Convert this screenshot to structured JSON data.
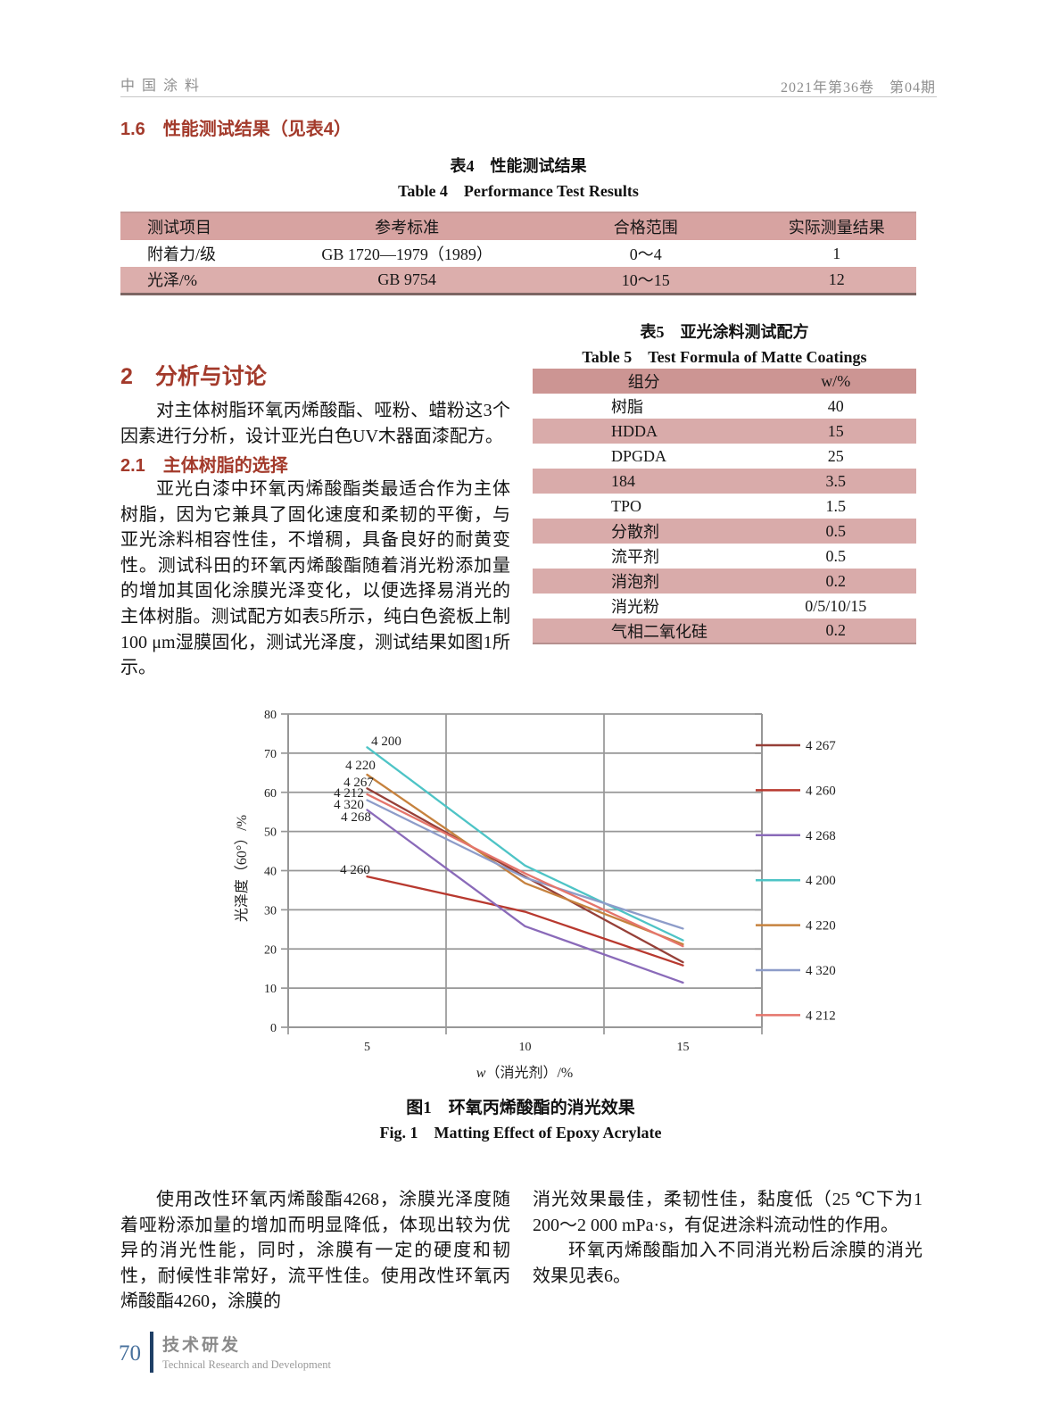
{
  "header": {
    "journal": "中国涂料",
    "issue": "2021年第36卷　第04期"
  },
  "sections": {
    "s16": {
      "title": "1.6　性能测试结果（见表4）"
    },
    "s2": {
      "title": "2　分析与讨论",
      "para": "对主体树脂环氧丙烯酸酯、哑粉、蜡粉这3个因素进行分析，设计亚光白色UV木器面漆配方。"
    },
    "s21": {
      "title": "2.1　主体树脂的选择",
      "para": "亚光白漆中环氧丙烯酸酯类最适合作为主体树脂，因为它兼具了固化速度和柔韧的平衡，与亚光涂料相容性佳，不增稠，具备良好的耐黄变性。测试科田的环氧丙烯酸酯随着消光粉添加量的增加其固化涂膜光泽变化，以便选择易消光的主体树脂。测试配方如表5所示，纯白色瓷板上制100 μm湿膜固化，测试光泽度，测试结果如图1所示。"
    }
  },
  "table4": {
    "title_cn": "表4　性能测试结果",
    "title_en": "Table 4　Performance Test Results",
    "headers": [
      "测试项目",
      "参考标准",
      "合格范围",
      "实际测量结果"
    ],
    "rows": [
      [
        "附着力/级",
        "GB 1720—1979（1989）",
        "0～4",
        "1"
      ],
      [
        "光泽/%",
        "GB 9754",
        "10～15",
        "12"
      ]
    ]
  },
  "table5": {
    "title_cn": "表5　亚光涂料测试配方",
    "title_en": "Table 5　Test Formula of Matte Coatings",
    "headers": [
      "组分",
      "w/%"
    ],
    "rows": [
      [
        "树脂",
        "40"
      ],
      [
        "HDDA",
        "15"
      ],
      [
        "DPGDA",
        "25"
      ],
      [
        "184",
        "3.5"
      ],
      [
        "TPO",
        "1.5"
      ],
      [
        "分散剂",
        "0.5"
      ],
      [
        "流平剂",
        "0.5"
      ],
      [
        "消泡剂",
        "0.2"
      ],
      [
        "消光粉",
        "0/5/10/15"
      ],
      [
        "气相二氧化硅",
        "0.2"
      ]
    ]
  },
  "figure1": {
    "caption_cn": "图1　环氧丙烯酸酯的消光效果",
    "caption_en": "Fig. 1　Matting Effect of Epoxy Acrylate"
  },
  "paragraphs": {
    "bottom_left": "使用改性环氧丙烯酸酯4268，涂膜光泽度随着哑粉添加量的增加而明显降低，体现出较为优异的消光性能，同时，涂膜有一定的硬度和韧性，耐候性非常好，流平性佳。使用改性环氧丙烯酸酯4260，涂膜的",
    "bottom_right_1": "消光效果最佳，柔韧性佳，黏度低（25 ℃下为1 200～2 000 mPa·s，有促进涂料流动性的作用。",
    "bottom_right_2": "环氧丙烯酸酯加入不同消光粉后涂膜的消光效果见表6。"
  },
  "footer": {
    "page_number": "70",
    "column_cn": "技术研发",
    "column_en": "Technical Research and Development"
  },
  "theme": {
    "accent_red": "#a33a2b",
    "table4_header_pink": "#d7a3a1",
    "table4_row_pink": "#dcaeac",
    "table5_header_pink": "#cc9593",
    "table5_row_pink": "#d9abaa",
    "grid_gray": "#979797",
    "footer_blue": "#47709c"
  },
  "chart_data": {
    "type": "line",
    "title": "",
    "xlabel": "w（消光剂）/%",
    "ylabel": "光泽度（60°）/%",
    "x": [
      5,
      10,
      15
    ],
    "xticks": [
      5,
      10,
      15
    ],
    "xlim": [
      2.5,
      17.5
    ],
    "ylim": [
      0,
      80
    ],
    "ytick_step": 10,
    "grid": true,
    "legend_position": "right",
    "series": [
      {
        "name": "4 267",
        "color": "#964038",
        "values": [
          61,
          38.5,
          16.6
        ]
      },
      {
        "name": "4 260",
        "color": "#b8392f",
        "values": [
          38.5,
          29.5,
          15.8
        ]
      },
      {
        "name": "4 268",
        "color": "#8a6ab9",
        "values": [
          55.5,
          25.8,
          11.4
        ]
      },
      {
        "name": "4 200",
        "color": "#4ec4c6",
        "values": [
          71.5,
          41.3,
          22.2
        ]
      },
      {
        "name": "4 220",
        "color": "#c6823e",
        "values": [
          64.5,
          36.8,
          21.2
        ]
      },
      {
        "name": "4 320",
        "color": "#8d9cc9",
        "values": [
          58,
          38.2,
          25.2
        ]
      },
      {
        "name": "4 212",
        "color": "#e5756b",
        "values": [
          59.5,
          39.3,
          20.7
        ]
      }
    ]
  }
}
